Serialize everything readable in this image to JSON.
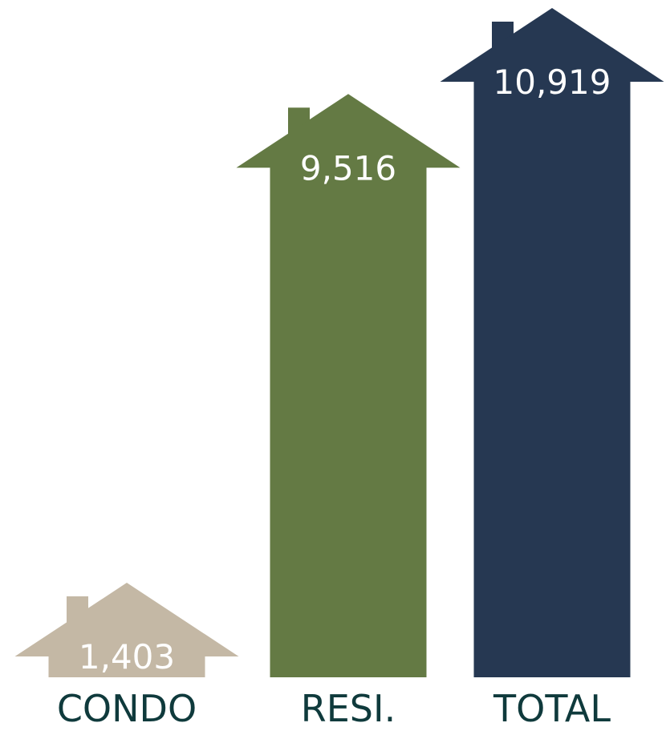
{
  "chart_data": {
    "type": "bar",
    "categories": [
      "CONDO",
      "RESI.",
      "TOTAL"
    ],
    "values": [
      1403,
      9516,
      10919
    ],
    "value_labels": [
      "1,403",
      "9,516",
      "10,919"
    ],
    "title": "",
    "xlabel": "",
    "ylabel": "",
    "ylim": [
      0,
      10919
    ],
    "grid": false,
    "legend": "none",
    "colors": [
      "#c4b8a5",
      "#647a44",
      "#263852"
    ]
  }
}
